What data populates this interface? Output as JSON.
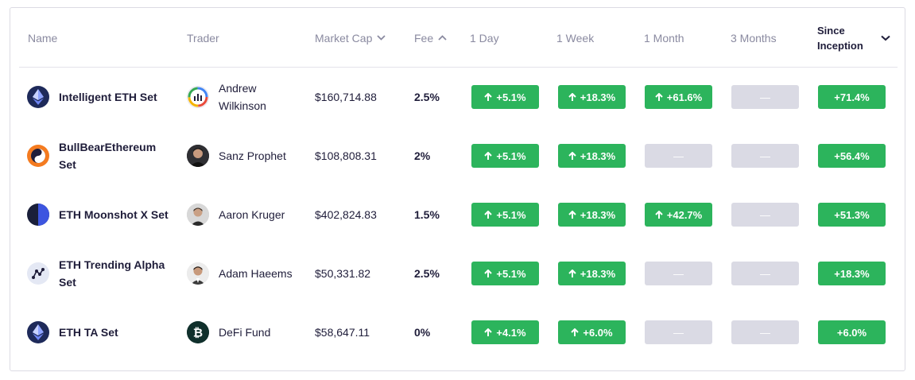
{
  "headers": {
    "name": "Name",
    "trader": "Trader",
    "market_cap": "Market Cap",
    "fee": "Fee",
    "day1": "1 Day",
    "week1": "1 Week",
    "month1": "1 Month",
    "months3": "3 Months",
    "since": "Since Inception"
  },
  "colors": {
    "positive": "#2cb45c",
    "empty": "#dadae4",
    "text": "#1f1d3a",
    "muted": "#8a8aa0"
  },
  "rows": [
    {
      "name": "Intelligent ETH Set",
      "icon": "ethereum-icon",
      "trader": "Andrew Wilkinson",
      "avatar": "chart-logo-avatar",
      "market_cap": "$160,714.88",
      "fee": "2.5%",
      "d1": "+5.1%",
      "w1": "+18.3%",
      "m1": "+61.6%",
      "m3": "—",
      "since": "+71.4%"
    },
    {
      "name": "BullBearEthereum Set",
      "icon": "bull-bear-icon",
      "trader": "Sanz Prophet",
      "avatar": "person-avatar",
      "market_cap": "$108,808.31",
      "fee": "2%",
      "d1": "+5.1%",
      "w1": "+18.3%",
      "m1": "—",
      "m3": "—",
      "since": "+56.4%"
    },
    {
      "name": "ETH Moonshot X Set",
      "icon": "moon-icon",
      "trader": "Aaron Kruger",
      "avatar": "person-avatar",
      "market_cap": "$402,824.83",
      "fee": "1.5%",
      "d1": "+5.1%",
      "w1": "+18.3%",
      "m1": "+42.7%",
      "m3": "—",
      "since": "+51.3%"
    },
    {
      "name": "ETH Trending Alpha Set",
      "icon": "trend-nodes-icon",
      "trader": "Adam Haeems",
      "avatar": "person-avatar",
      "market_cap": "$50,331.82",
      "fee": "2.5%",
      "d1": "+5.1%",
      "w1": "+18.3%",
      "m1": "—",
      "m3": "—",
      "since": "+18.3%"
    },
    {
      "name": "ETH TA Set",
      "icon": "ethereum-icon",
      "trader": "DeFi Fund",
      "avatar": "bitcoin-avatar",
      "market_cap": "$58,647.11",
      "fee": "0%",
      "d1": "+4.1%",
      "w1": "+6.0%",
      "m1": "—",
      "m3": "—",
      "since": "+6.0%"
    }
  ]
}
